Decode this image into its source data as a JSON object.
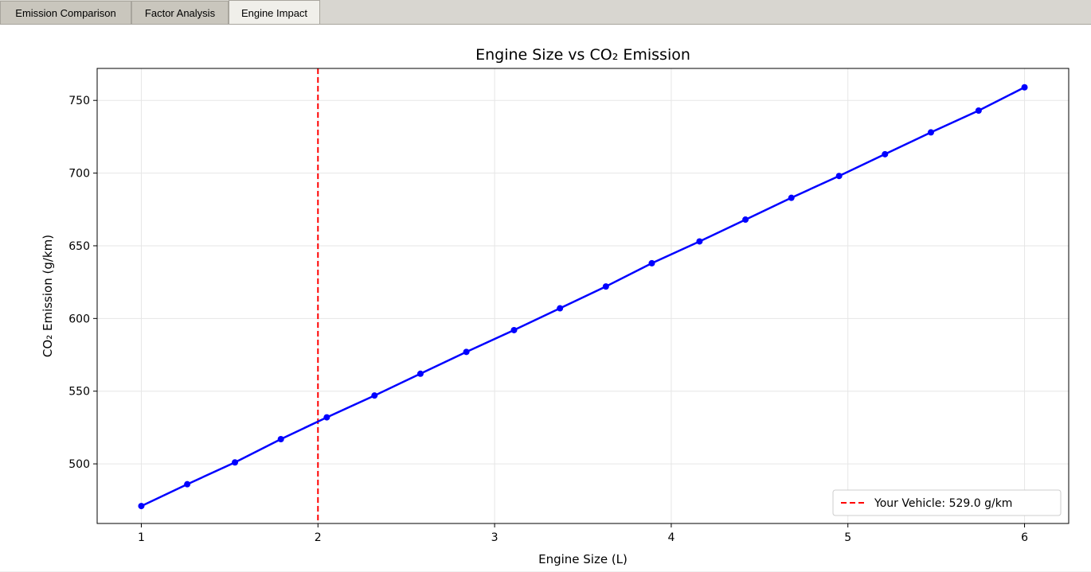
{
  "tabs": [
    {
      "label": "Emission Comparison"
    },
    {
      "label": "Factor Analysis"
    },
    {
      "label": "Engine Impact"
    }
  ],
  "colors": {
    "series": "#0000ff",
    "marker_line": "#ff0000",
    "grid": "#e6e6e6"
  },
  "chart_data": {
    "type": "line",
    "title": "Engine Size vs CO₂ Emission",
    "xlabel": "Engine Size (L)",
    "ylabel": "CO₂ Emission (g/km)",
    "xlim": [
      0.75,
      6.25
    ],
    "ylim": [
      459,
      772
    ],
    "xticks": [
      1,
      2,
      3,
      4,
      5,
      6
    ],
    "yticks": [
      500,
      550,
      600,
      650,
      700,
      750
    ],
    "grid": true,
    "legend_position": "lower-right",
    "series": [
      {
        "x": [
          1.0,
          1.26,
          1.53,
          1.79,
          2.05,
          2.32,
          2.58,
          2.84,
          3.11,
          3.37,
          3.63,
          3.89,
          4.16,
          4.42,
          4.68,
          4.95,
          5.21,
          5.47,
          5.74,
          6.0
        ],
        "y": [
          471,
          486,
          501,
          517,
          532,
          547,
          562,
          577,
          592,
          607,
          622,
          638,
          653,
          668,
          683,
          698,
          713,
          728,
          743,
          759
        ]
      }
    ],
    "reference_line": {
      "orientation": "vertical",
      "x": 2.0,
      "label": "Your Vehicle: 529.0 g/km"
    }
  }
}
